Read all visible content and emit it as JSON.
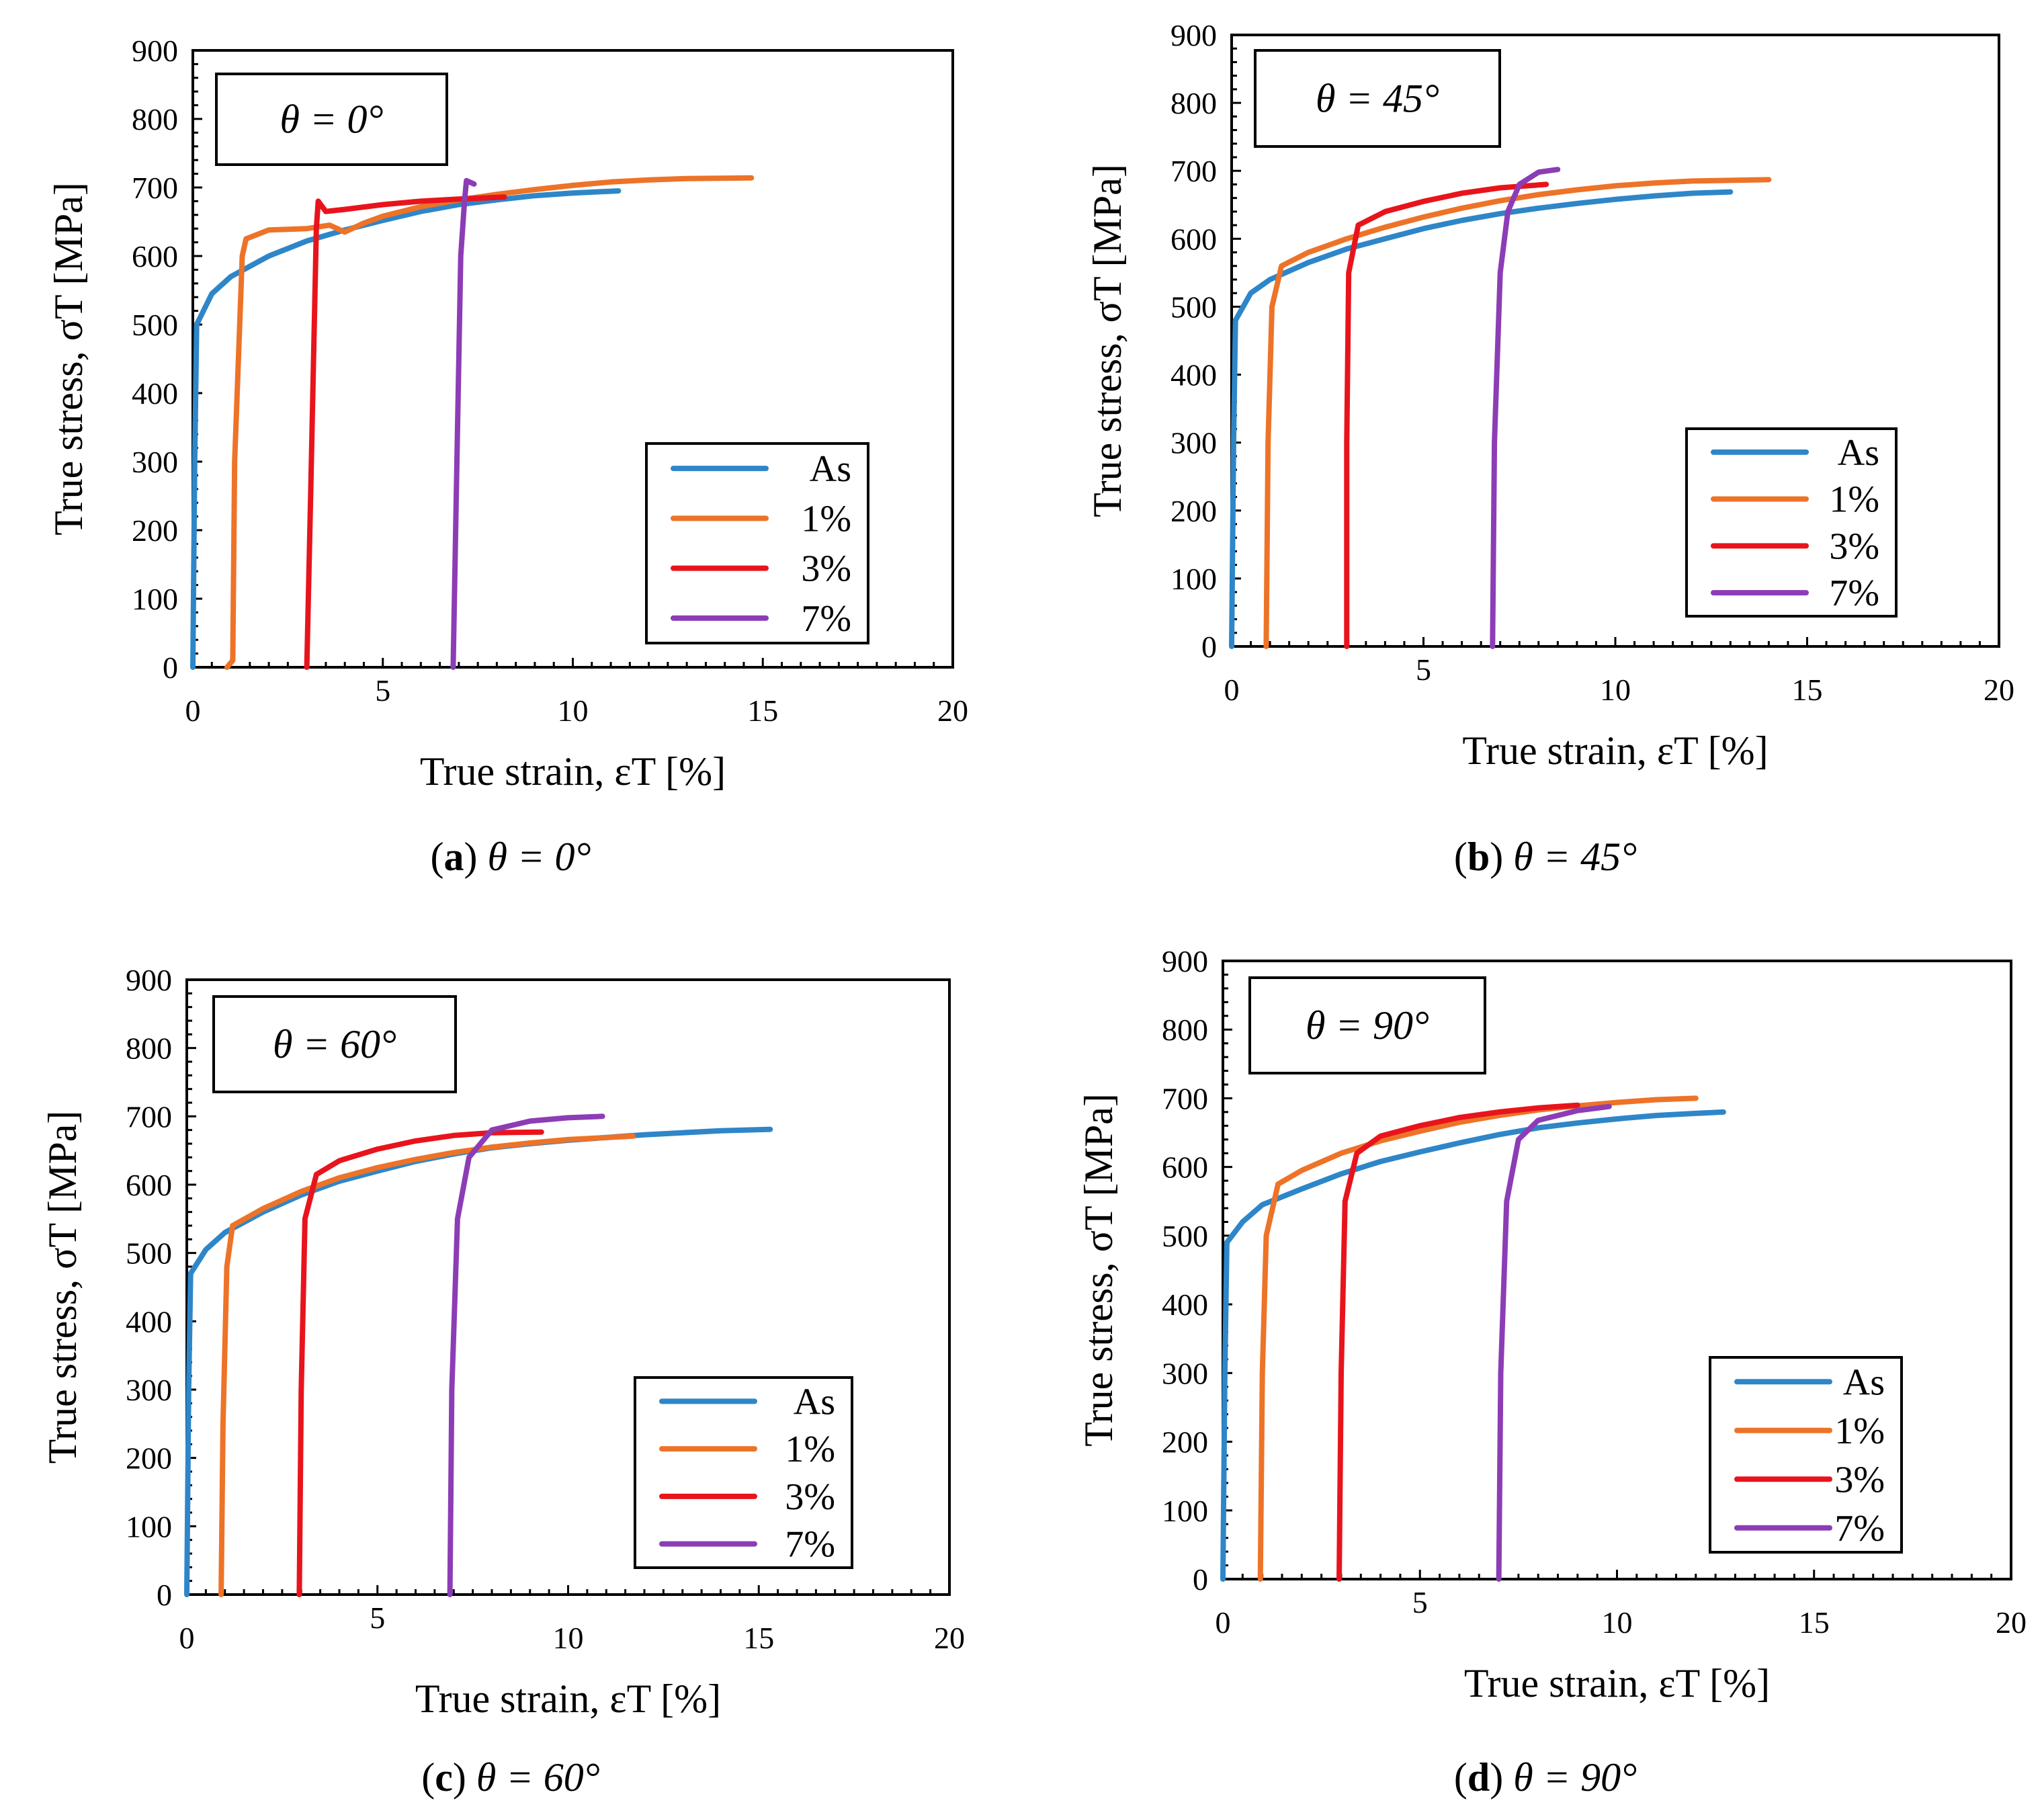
{
  "figure": {
    "captions": [
      {
        "letter": "a",
        "math": "θ = 0°"
      },
      {
        "letter": "b",
        "math": "θ = 45°"
      },
      {
        "letter": "c",
        "math": "θ = 60°"
      },
      {
        "letter": "d",
        "math": "θ = 90°"
      }
    ]
  },
  "colors": {
    "As": "#2E86C8",
    "1%": "#ED7328",
    "3%": "#E8141C",
    "7%": "#8C3DB5"
  },
  "chart_data": [
    {
      "type": "line",
      "panel": "a",
      "title": "θ = 0°",
      "xlabel": "True strain, εT [%]",
      "ylabel": "True stress, σT [MPa]",
      "xlim": [
        0,
        20
      ],
      "ylim": [
        0,
        900
      ],
      "xticks": [
        0,
        5,
        10,
        15,
        20
      ],
      "yticks": [
        0,
        100,
        200,
        300,
        400,
        500,
        600,
        700,
        800,
        900
      ],
      "legend": [
        "As",
        "1%",
        "3%",
        "7%"
      ],
      "series": [
        {
          "name": "As",
          "points": [
            [
              0,
              0
            ],
            [
              0.05,
              300
            ],
            [
              0.1,
              500
            ],
            [
              0.5,
              545
            ],
            [
              1,
              570
            ],
            [
              2,
              600
            ],
            [
              3,
              622
            ],
            [
              4,
              638
            ],
            [
              5,
              652
            ],
            [
              6,
              665
            ],
            [
              7,
              675
            ],
            [
              8,
              682
            ],
            [
              9,
              688
            ],
            [
              10,
              692
            ],
            [
              11.2,
              695
            ]
          ]
        },
        {
          "name": "1%",
          "points": [
            [
              0.9,
              0
            ],
            [
              1.05,
              10
            ],
            [
              1.1,
              300
            ],
            [
              1.3,
              600
            ],
            [
              1.4,
              625
            ],
            [
              2,
              638
            ],
            [
              3,
              640
            ],
            [
              3.6,
              645
            ],
            [
              4,
              635
            ],
            [
              4.5,
              648
            ],
            [
              5,
              658
            ],
            [
              6,
              672
            ],
            [
              7,
              682
            ],
            [
              8,
              690
            ],
            [
              9,
              697
            ],
            [
              10,
              703
            ],
            [
              11,
              708
            ],
            [
              12,
              711
            ],
            [
              13,
              713
            ],
            [
              14.7,
              714
            ]
          ]
        },
        {
          "name": "3%",
          "points": [
            [
              3.0,
              0
            ],
            [
              3.1,
              250
            ],
            [
              3.25,
              640
            ],
            [
              3.3,
              680
            ],
            [
              3.5,
              665
            ],
            [
              4,
              668
            ],
            [
              5,
              675
            ],
            [
              6,
              680
            ],
            [
              7,
              683
            ],
            [
              8.2,
              686
            ]
          ]
        },
        {
          "name": "7%",
          "points": [
            [
              6.85,
              0
            ],
            [
              6.95,
              300
            ],
            [
              7.05,
              600
            ],
            [
              7.15,
              680
            ],
            [
              7.2,
              710
            ],
            [
              7.4,
              705
            ]
          ]
        }
      ]
    },
    {
      "type": "line",
      "panel": "b",
      "title": "θ = 45°",
      "xlabel": "True strain, εT [%]",
      "ylabel": "True stress, σT [MPa]",
      "xlim": [
        0,
        20
      ],
      "ylim": [
        0,
        900
      ],
      "xticks": [
        0,
        5,
        10,
        15,
        20
      ],
      "yticks": [
        0,
        100,
        200,
        300,
        400,
        500,
        600,
        700,
        800,
        900
      ],
      "legend": [
        "As",
        "1%",
        "3%",
        "7%"
      ],
      "series": [
        {
          "name": "As",
          "points": [
            [
              0,
              0
            ],
            [
              0.05,
              300
            ],
            [
              0.1,
              480
            ],
            [
              0.5,
              520
            ],
            [
              1,
              540
            ],
            [
              2,
              565
            ],
            [
              3,
              585
            ],
            [
              4,
              600
            ],
            [
              5,
              615
            ],
            [
              6,
              627
            ],
            [
              7,
              637
            ],
            [
              8,
              645
            ],
            [
              9,
              652
            ],
            [
              10,
              658
            ],
            [
              11,
              663
            ],
            [
              12,
              667
            ],
            [
              13,
              669
            ]
          ]
        },
        {
          "name": "1%",
          "points": [
            [
              0.9,
              0
            ],
            [
              0.95,
              300
            ],
            [
              1.05,
              500
            ],
            [
              1.3,
              560
            ],
            [
              2,
              580
            ],
            [
              3,
              600
            ],
            [
              4,
              617
            ],
            [
              5,
              632
            ],
            [
              6,
              645
            ],
            [
              7,
              656
            ],
            [
              8,
              665
            ],
            [
              9,
              672
            ],
            [
              10,
              678
            ],
            [
              11,
              682
            ],
            [
              12,
              685
            ],
            [
              14,
              687
            ]
          ]
        },
        {
          "name": "3%",
          "points": [
            [
              3.0,
              0
            ],
            [
              3.0,
              300
            ],
            [
              3.05,
              550
            ],
            [
              3.3,
              620
            ],
            [
              4,
              640
            ],
            [
              5,
              655
            ],
            [
              6,
              667
            ],
            [
              7,
              675
            ],
            [
              8.2,
              680
            ]
          ]
        },
        {
          "name": "7%",
          "points": [
            [
              6.8,
              0
            ],
            [
              6.85,
              300
            ],
            [
              7.0,
              550
            ],
            [
              7.2,
              640
            ],
            [
              7.5,
              680
            ],
            [
              8,
              698
            ],
            [
              8.5,
              702
            ]
          ]
        }
      ]
    },
    {
      "type": "line",
      "panel": "c",
      "title": "θ = 60°",
      "xlabel": "True strain, εT [%]",
      "ylabel": "True stress, σT [MPa]",
      "xlim": [
        0,
        20
      ],
      "ylim": [
        0,
        900
      ],
      "xticks": [
        0,
        5,
        10,
        15,
        20
      ],
      "yticks": [
        0,
        100,
        200,
        300,
        400,
        500,
        600,
        700,
        800,
        900
      ],
      "legend": [
        "As",
        "1%",
        "3%",
        "7%"
      ],
      "series": [
        {
          "name": "As",
          "points": [
            [
              0,
              0
            ],
            [
              0.05,
              300
            ],
            [
              0.1,
              470
            ],
            [
              0.5,
              505
            ],
            [
              1,
              530
            ],
            [
              2,
              560
            ],
            [
              3,
              585
            ],
            [
              4,
              605
            ],
            [
              5,
              620
            ],
            [
              6,
              634
            ],
            [
              7,
              645
            ],
            [
              8,
              654
            ],
            [
              9,
              660
            ],
            [
              10,
              665
            ],
            [
              11,
              669
            ],
            [
              12,
              673
            ],
            [
              13,
              676
            ],
            [
              14,
              679
            ],
            [
              15.3,
              681
            ]
          ]
        },
        {
          "name": "1%",
          "points": [
            [
              0.9,
              0
            ],
            [
              0.95,
              250
            ],
            [
              1.05,
              480
            ],
            [
              1.2,
              540
            ],
            [
              2,
              565
            ],
            [
              3,
              590
            ],
            [
              4,
              610
            ],
            [
              5,
              625
            ],
            [
              6,
              637
            ],
            [
              7,
              647
            ],
            [
              8,
              655
            ],
            [
              9,
              661
            ],
            [
              10,
              666
            ],
            [
              11.7,
              671
            ]
          ]
        },
        {
          "name": "3%",
          "points": [
            [
              2.95,
              0
            ],
            [
              3.0,
              300
            ],
            [
              3.1,
              550
            ],
            [
              3.4,
              615
            ],
            [
              4,
              635
            ],
            [
              5,
              652
            ],
            [
              6,
              664
            ],
            [
              7,
              672
            ],
            [
              8,
              676
            ],
            [
              9.3,
              677
            ]
          ]
        },
        {
          "name": "7%",
          "points": [
            [
              6.9,
              0
            ],
            [
              6.95,
              300
            ],
            [
              7.1,
              550
            ],
            [
              7.4,
              640
            ],
            [
              8,
              680
            ],
            [
              9,
              693
            ],
            [
              10,
              698
            ],
            [
              10.9,
              700
            ]
          ]
        }
      ]
    },
    {
      "type": "line",
      "panel": "d",
      "title": "θ = 90°",
      "xlabel": "True strain, εT [%]",
      "ylabel": "True stress, σT [MPa]",
      "xlim": [
        0,
        20
      ],
      "ylim": [
        0,
        900
      ],
      "xticks": [
        0,
        5,
        10,
        15,
        20
      ],
      "yticks": [
        0,
        100,
        200,
        300,
        400,
        500,
        600,
        700,
        800,
        900
      ],
      "legend": [
        "As",
        "1%",
        "3%",
        "7%"
      ],
      "series": [
        {
          "name": "As",
          "points": [
            [
              0,
              0
            ],
            [
              0.05,
              300
            ],
            [
              0.1,
              490
            ],
            [
              0.5,
              520
            ],
            [
              1,
              545
            ],
            [
              2,
              568
            ],
            [
              3,
              590
            ],
            [
              4,
              608
            ],
            [
              5,
              622
            ],
            [
              6,
              635
            ],
            [
              7,
              647
            ],
            [
              8,
              657
            ],
            [
              9,
              664
            ],
            [
              10,
              670
            ],
            [
              11,
              675
            ],
            [
              12,
              678
            ],
            [
              12.7,
              680
            ]
          ]
        },
        {
          "name": "1%",
          "points": [
            [
              0.95,
              0
            ],
            [
              1.0,
              300
            ],
            [
              1.1,
              500
            ],
            [
              1.4,
              575
            ],
            [
              2,
              595
            ],
            [
              3,
              620
            ],
            [
              4,
              638
            ],
            [
              5,
              652
            ],
            [
              6,
              665
            ],
            [
              7,
              675
            ],
            [
              8,
              683
            ],
            [
              9,
              689
            ],
            [
              10,
              694
            ],
            [
              11,
              698
            ],
            [
              12.0,
              700
            ]
          ]
        },
        {
          "name": "3%",
          "points": [
            [
              2.95,
              0
            ],
            [
              3.0,
              300
            ],
            [
              3.1,
              550
            ],
            [
              3.4,
              620
            ],
            [
              4,
              645
            ],
            [
              5,
              660
            ],
            [
              6,
              672
            ],
            [
              7,
              680
            ],
            [
              8,
              686
            ],
            [
              9,
              690
            ]
          ]
        },
        {
          "name": "7%",
          "points": [
            [
              7.0,
              0
            ],
            [
              7.05,
              300
            ],
            [
              7.2,
              550
            ],
            [
              7.5,
              640
            ],
            [
              8,
              668
            ],
            [
              9,
              682
            ],
            [
              9.8,
              688
            ]
          ]
        }
      ]
    }
  ]
}
